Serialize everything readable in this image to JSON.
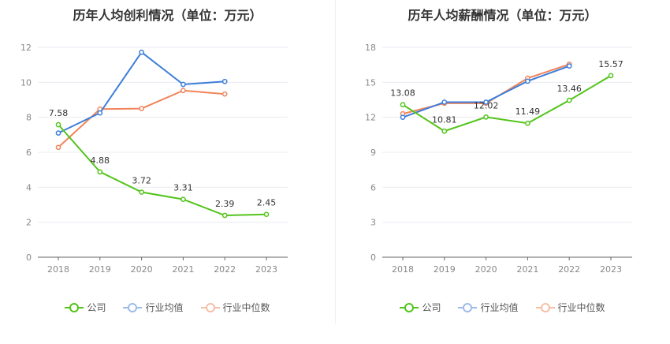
{
  "colors": {
    "company": "#52c41a",
    "industry_avg": "#3d7ed9",
    "industry_median": "#f0845a"
  },
  "legend": {
    "company": "公司",
    "industry_avg": "行业均值",
    "industry_median": "行业中位数"
  },
  "chart_data": [
    {
      "type": "line",
      "title": "历年人均创利情况（单位：万元）",
      "categories": [
        "2018",
        "2019",
        "2020",
        "2021",
        "2022",
        "2023"
      ],
      "ylim": [
        0,
        12
      ],
      "yticks": [
        "0",
        "2",
        "4",
        "6",
        "8",
        "10",
        "12"
      ],
      "grid": true,
      "legend_position": "bottom",
      "series": [
        {
          "key": "company",
          "name": "公司",
          "values": [
            7.58,
            4.88,
            3.72,
            3.31,
            2.39,
            2.45
          ],
          "labels": [
            "7.58",
            "4.88",
            "3.72",
            "3.31",
            "2.39",
            "2.45"
          ]
        },
        {
          "key": "industry_avg",
          "name": "行业均值",
          "values": [
            7.1,
            8.25,
            11.72,
            9.88,
            10.05,
            null
          ]
        },
        {
          "key": "industry_median",
          "name": "行业中位数",
          "values": [
            6.28,
            8.47,
            8.5,
            9.53,
            9.33,
            null
          ]
        }
      ]
    },
    {
      "type": "line",
      "title": "历年人均薪酬情况（单位：万元）",
      "categories": [
        "2018",
        "2019",
        "2020",
        "2021",
        "2022",
        "2023"
      ],
      "ylim": [
        0,
        18
      ],
      "yticks": [
        "0",
        "3",
        "6",
        "9",
        "12",
        "15",
        "18"
      ],
      "grid": true,
      "legend_position": "bottom",
      "series": [
        {
          "key": "company",
          "name": "公司",
          "values": [
            13.08,
            10.81,
            12.02,
            11.49,
            13.46,
            15.57
          ],
          "labels": [
            "13.08",
            "10.81",
            "12.02",
            "11.49",
            "13.46",
            "15.57"
          ]
        },
        {
          "key": "industry_avg",
          "name": "行业均值",
          "values": [
            12.0,
            13.3,
            13.3,
            15.1,
            16.4,
            null
          ]
        },
        {
          "key": "industry_median",
          "name": "行业中位数",
          "values": [
            12.3,
            13.2,
            13.2,
            15.35,
            16.55,
            null
          ]
        }
      ]
    }
  ]
}
